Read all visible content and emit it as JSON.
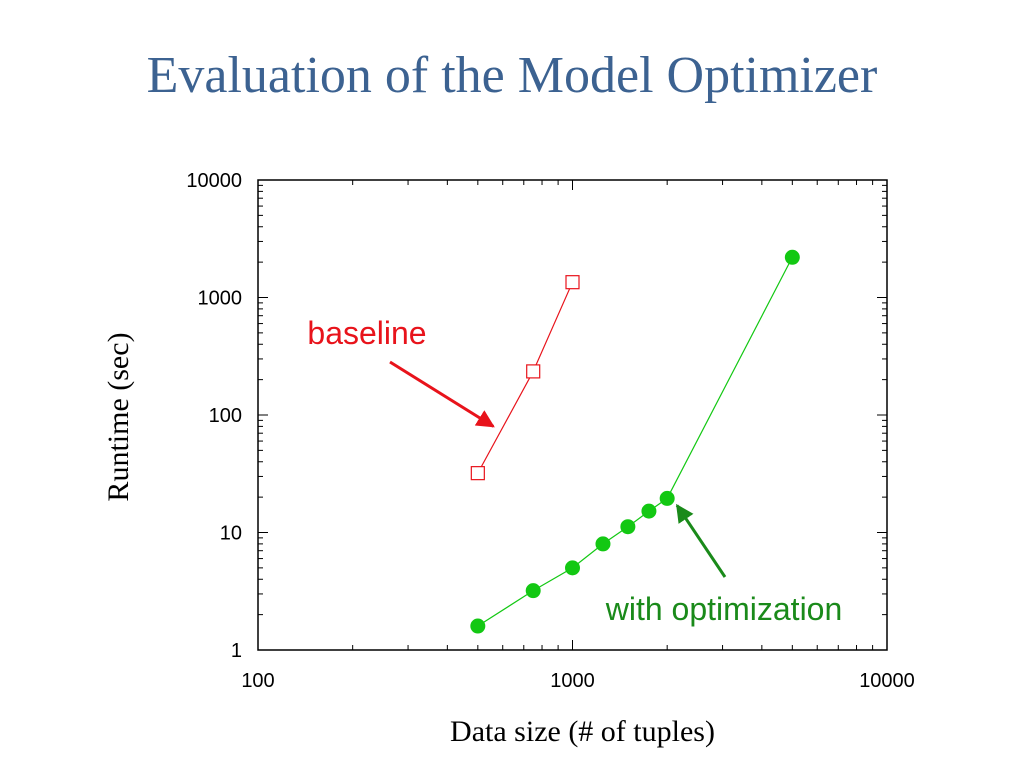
{
  "slide": {
    "title": "Evaluation of the Model Optimizer"
  },
  "chart_data": {
    "type": "scatter",
    "title": "",
    "xlabel": "Data size (# of tuples)",
    "ylabel": "Runtime (sec)",
    "x_scale": "log",
    "y_scale": "log",
    "xlim": [
      100,
      10000
    ],
    "ylim": [
      1,
      10000
    ],
    "x_ticks": [
      {
        "value": 100,
        "label": "100"
      },
      {
        "value": 1000,
        "label": "1000"
      },
      {
        "value": 10000,
        "label": "10000"
      }
    ],
    "y_ticks": [
      {
        "value": 1,
        "label": "1"
      },
      {
        "value": 10,
        "label": "10"
      },
      {
        "value": 100,
        "label": "100"
      },
      {
        "value": 1000,
        "label": "1000"
      },
      {
        "value": 10000,
        "label": "10000"
      }
    ],
    "grid": false,
    "series": [
      {
        "key": "baseline",
        "color": "#e8131b",
        "marker": "open-square",
        "points": [
          {
            "x": 500,
            "y": 32
          },
          {
            "x": 750,
            "y": 235
          },
          {
            "x": 1000,
            "y": 1350
          }
        ]
      },
      {
        "key": "optimized",
        "color": "#13c813",
        "marker": "filled-circle",
        "points": [
          {
            "x": 500,
            "y": 1.6
          },
          {
            "x": 750,
            "y": 3.2
          },
          {
            "x": 1000,
            "y": 5.0
          },
          {
            "x": 1250,
            "y": 8.0
          },
          {
            "x": 1500,
            "y": 11.2
          },
          {
            "x": 1750,
            "y": 15.2
          },
          {
            "x": 2000,
            "y": 19.5
          },
          {
            "x": 5000,
            "y": 2200
          }
        ]
      }
    ],
    "annotations": [
      {
        "key": "baseline",
        "text": "baseline",
        "color": "#e8131b",
        "arrow_to": {
          "x": 560,
          "y": 80
        }
      },
      {
        "key": "optimized",
        "text": "with optimization",
        "color": "#1a8a1a",
        "arrow_to": {
          "x": 2150,
          "y": 17
        }
      }
    ]
  }
}
